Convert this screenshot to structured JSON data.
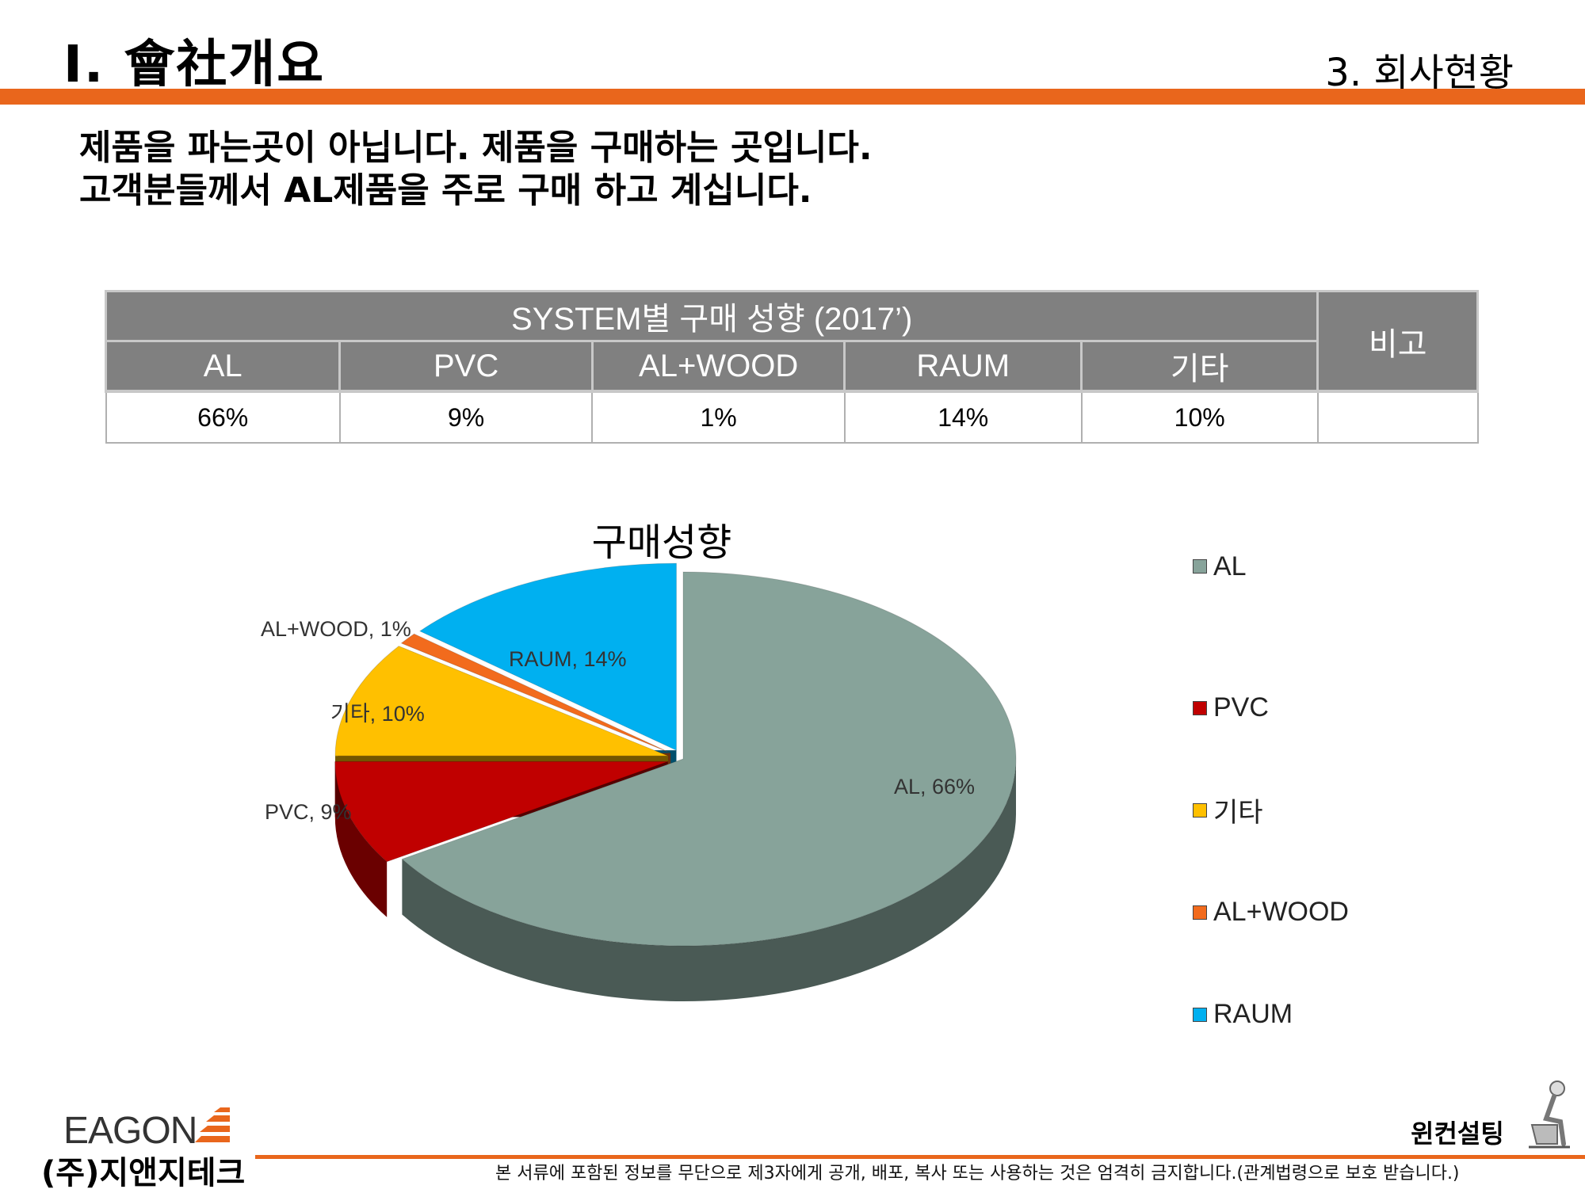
{
  "header": {
    "section_title": "Ⅰ. 會社개요",
    "section_sub": "3. 회사현황"
  },
  "intro": {
    "line1": "제품을 파는곳이 아닙니다. 제품을  구매하는 곳입니다.",
    "line2": "고객분들께서 AL제품을 주로 구매 하고 계십니다."
  },
  "table": {
    "title": "SYSTEM별 구매 성향 (2017’)",
    "note_header": "비고",
    "columns": [
      "AL",
      "PVC",
      "AL+WOOD",
      "RAUM",
      "기타"
    ],
    "values": [
      "66%",
      "9%",
      "1%",
      "14%",
      "10%"
    ],
    "note_value": ""
  },
  "chart_data": {
    "type": "pie",
    "title": "구매성향",
    "categories": [
      "AL",
      "PVC",
      "기타",
      "AL+WOOD",
      "RAUM"
    ],
    "values": [
      66,
      9,
      10,
      1,
      14
    ],
    "unit": "%",
    "data_labels": [
      "AL, 66%",
      "PVC, 9%",
      "기타, 10%",
      "AL+WOOD, 1%",
      "RAUM, 14%"
    ],
    "colors": [
      "#87a39a",
      "#c00000",
      "#ffc000",
      "#f26b1d",
      "#00b0f0"
    ],
    "exploded": [
      "PVC",
      "기타",
      "AL+WOOD",
      "RAUM"
    ],
    "style": "3d",
    "legend": {
      "position": "right",
      "entries": [
        "AL",
        "PVC",
        "기타",
        "AL+WOOD",
        "RAUM"
      ]
    }
  },
  "footer": {
    "logo_text": "EAGON",
    "company": "(주)지앤지테크",
    "disclaimer": "본 서류에 포함된 정보를 무단으로 제3자에게 공개, 배포, 복사 또는 사용하는 것은 엄격히 금지합니다.(관계법령으로 보호 받습니다.)",
    "consult": "윈컨설팅"
  },
  "colors": {
    "accent": "#e9661c",
    "table_header": "#808080"
  }
}
